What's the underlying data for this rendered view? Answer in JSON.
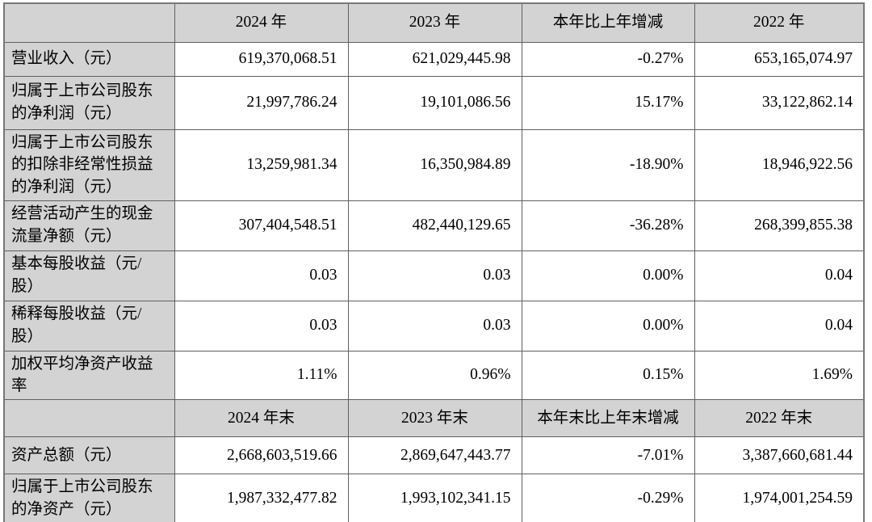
{
  "financial_table": {
    "annual_section": {
      "headers": {
        "label": "",
        "y2024": "2024 年",
        "y2023": "2023 年",
        "change": "本年比上年增减",
        "y2022": "2022 年"
      },
      "rows": [
        {
          "label": "营业收入（元）",
          "y2024": "619,370,068.51",
          "y2023": "621,029,445.98",
          "change": "-0.27%",
          "y2022": "653,165,074.97"
        },
        {
          "label": "归属于上市公司股东的净利润（元）",
          "y2024": "21,997,786.24",
          "y2023": "19,101,086.56",
          "change": "15.17%",
          "y2022": "33,122,862.14"
        },
        {
          "label": "归属于上市公司股东的扣除非经常性损益的净利润（元）",
          "y2024": "13,259,981.34",
          "y2023": "16,350,984.89",
          "change": "-18.90%",
          "y2022": "18,946,922.56"
        },
        {
          "label": "经营活动产生的现金流量净额（元）",
          "y2024": "307,404,548.51",
          "y2023": "482,440,129.65",
          "change": "-36.28%",
          "y2022": "268,399,855.38"
        },
        {
          "label": "基本每股收益（元/股）",
          "y2024": "0.03",
          "y2023": "0.03",
          "change": "0.00%",
          "y2022": "0.04"
        },
        {
          "label": "稀释每股收益（元/股）",
          "y2024": "0.03",
          "y2023": "0.03",
          "change": "0.00%",
          "y2022": "0.04"
        },
        {
          "label": "加权平均净资产收益率",
          "y2024": "1.11%",
          "y2023": "0.96%",
          "change": "0.15%",
          "y2022": "1.69%"
        }
      ]
    },
    "year_end_section": {
      "headers": {
        "label": "",
        "y2024": "2024 年末",
        "y2023": "2023 年末",
        "change": "本年末比上年末增减",
        "y2022": "2022 年末"
      },
      "rows": [
        {
          "label": "资产总额（元）",
          "y2024": "2,668,603,519.66",
          "y2023": "2,869,647,443.77",
          "change": "-7.01%",
          "y2022": "3,387,660,681.44"
        },
        {
          "label": "归属于上市公司股东的净资产（元）",
          "y2024": "1,987,332,477.82",
          "y2023": "1,993,102,341.15",
          "change": "-0.29%",
          "y2022": "1,974,001,254.59"
        }
      ]
    },
    "colors": {
      "header_bg": "#d3d3d3",
      "label_bg": "#d3d3d3",
      "border": "#5f5f5f",
      "text": "#000000",
      "page_bg": "#ffffff"
    }
  }
}
